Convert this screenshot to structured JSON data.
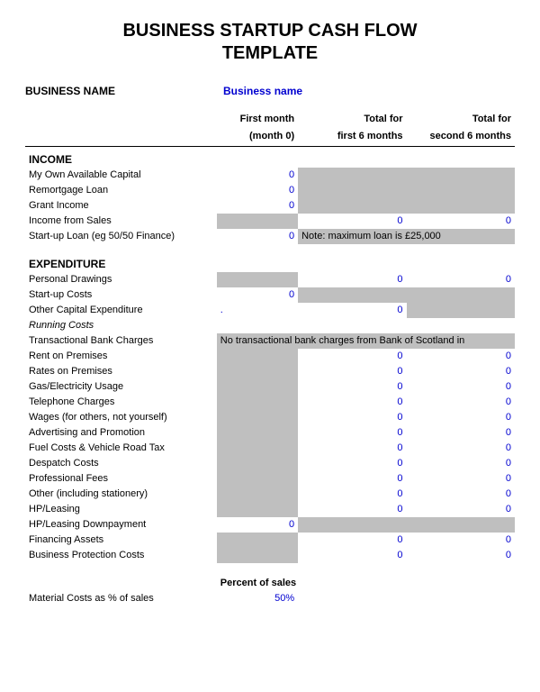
{
  "title_line1": "BUSINESS STARTUP CASH FLOW",
  "title_line2": "TEMPLATE",
  "business_label": "BUSINESS NAME",
  "business_value": "Business name",
  "headers": {
    "c1a": "First month",
    "c1b": "(month 0)",
    "c2a": "Total for",
    "c2b": "first 6 months",
    "c3a": "Total for",
    "c3b": "second 6 months"
  },
  "section_income": "INCOME",
  "income": {
    "own_capital": {
      "label": "My Own Available Capital",
      "v1": "0"
    },
    "remortgage": {
      "label": "Remortgage Loan",
      "v1": "0"
    },
    "grant": {
      "label": "Grant Income",
      "v1": "0"
    },
    "sales": {
      "label": "Income from Sales",
      "v2": "0",
      "v3": "0"
    },
    "startup_loan": {
      "label": "Start-up Loan (eg 50/50 Finance)",
      "v1": "0",
      "note": "Note: maximum loan is £25,000"
    }
  },
  "section_expenditure": "EXPENDITURE",
  "exp": {
    "personal": {
      "label": "Personal Drawings",
      "v2": "0",
      "v3": "0"
    },
    "startup": {
      "label": "Start-up Costs",
      "v1": "0"
    },
    "othercap": {
      "label": "Other Capital Expenditure",
      "dot": ".",
      "v2": "0"
    },
    "running": {
      "label": "Running Costs"
    },
    "bankchg": {
      "label": "Transactional Bank Charges",
      "note": "No transactional bank charges from Bank of Scotland in"
    },
    "rent": {
      "label": "Rent on Premises",
      "v2": "0",
      "v3": "0"
    },
    "rates": {
      "label": "Rates on Premises",
      "v2": "0",
      "v3": "0"
    },
    "gas": {
      "label": "Gas/Electricity Usage",
      "v2": "0",
      "v3": "0"
    },
    "tel": {
      "label": "Telephone Charges",
      "v2": "0",
      "v3": "0"
    },
    "wages": {
      "label": "Wages (for others, not yourself)",
      "v2": "0",
      "v3": "0"
    },
    "ads": {
      "label": "Advertising and Promotion",
      "v2": "0",
      "v3": "0"
    },
    "fuel": {
      "label": "Fuel Costs & Vehicle Road Tax",
      "v2": "0",
      "v3": "0"
    },
    "despatch": {
      "label": "Despatch Costs",
      "v2": "0",
      "v3": "0"
    },
    "prof": {
      "label": "Professional Fees",
      "v2": "0",
      "v3": "0"
    },
    "other": {
      "label": "Other (including stationery)",
      "v2": "0",
      "v3": "0"
    },
    "hp": {
      "label": "HP/Leasing",
      "v2": "0",
      "v3": "0"
    },
    "hpdown": {
      "label": "HP/Leasing Downpayment",
      "v1": "0"
    },
    "fin": {
      "label": "Financing Assets",
      "v2": "0",
      "v3": "0"
    },
    "bizprot": {
      "label": "Business Protection Costs",
      "v2": "0",
      "v3": "0"
    }
  },
  "percent_label": "Percent of sales",
  "material": {
    "label": "Material Costs as % of sales",
    "val": "50%"
  },
  "colors": {
    "value": "#0000d0",
    "grey": "#bfbfbf",
    "text": "#000000",
    "bg": "#ffffff"
  }
}
